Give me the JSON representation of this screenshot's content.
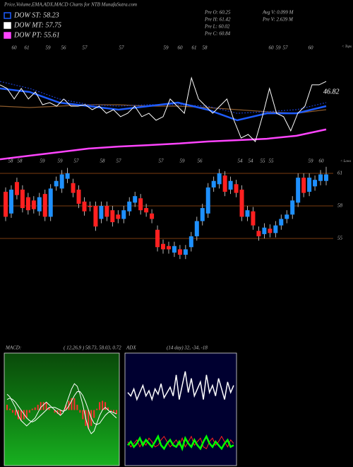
{
  "header": {
    "title": "Price,Volume,EMA,ADX,MACD Charts for NTB MunafaSutra.com",
    "legend": [
      {
        "label": "DOW ST: 58.23",
        "color": "#1e5cff"
      },
      {
        "label": "DOW MT: 57.75",
        "color": "#ffffff"
      },
      {
        "label": "DOW PT: 55.61",
        "color": "#ff44ff"
      }
    ],
    "stats": [
      "Pre O: 60.25",
      "Pre H: 61.42",
      "Pre L: 60.02",
      "Pre C: 60.84",
      "Avg V: 0.099 M",
      "Pre V: 2.639 M"
    ]
  },
  "chart_data": [
    {
      "type": "line",
      "ylim": [
        0,
        100
      ],
      "annotation": "46.82",
      "tops_label": "< Tops",
      "lows_label": "< Lows",
      "top_labels": [
        "60",
        "61",
        "59",
        "56",
        "57",
        "57",
        "59",
        "60",
        "61",
        "58",
        "60",
        "59",
        "57",
        "60"
      ],
      "bottom_labels": [
        "58",
        "58",
        "59",
        "59",
        "57",
        "58",
        "57",
        "57",
        "59",
        "56",
        "54",
        "54",
        "55",
        "55",
        "59",
        "60"
      ],
      "series": [
        {
          "color": "#8b5a2b",
          "width": 1.2,
          "dash": false,
          "values": [
            50,
            48.9,
            50,
            51.1,
            51.1,
            50,
            50,
            48.9,
            47.2,
            45.6,
            44.4,
            47.2
          ]
        },
        {
          "color": "#ff44ff",
          "width": 2.5,
          "dash": false,
          "values": [
            8.3,
            11.1,
            13.9,
            16.7,
            18.3,
            19.4,
            20.6,
            22.2,
            23.3,
            24.4,
            26.7,
            31.7
          ]
        },
        {
          "color": "#1a3cc8",
          "width": 1.2,
          "dash": true,
          "values": [
            69.4,
            63.9,
            55.6,
            51.1,
            50,
            51.1,
            51.1,
            50,
            44.4,
            45.6,
            47.2,
            52.8
          ]
        },
        {
          "color": "#1e5cff",
          "width": 2.5,
          "dash": false,
          "values": [
            63.9,
            61.1,
            52.8,
            50,
            47.2,
            50,
            52.8,
            47.2,
            38.9,
            44.4,
            44.4,
            50
          ]
        },
        {
          "color": "#ffffff",
          "width": 1,
          "dash": false,
          "values": [
            66.7,
            63.9,
            55.6,
            63.9,
            55.6,
            61.1,
            51.1,
            52.8,
            50,
            55.6,
            50,
            50,
            51.1,
            47.2,
            50,
            44.4,
            47.2,
            41.7,
            44.4,
            50,
            41.7,
            44.4,
            38.9,
            41.7,
            55.6,
            50,
            44.4,
            72.2,
            55.6,
            50,
            44.4,
            50,
            55.6,
            38.9,
            25,
            27.8,
            22.2,
            41.7,
            63.9,
            44.4,
            41.7,
            30.6,
            44.4,
            50,
            66.7,
            66.7,
            69.4
          ]
        }
      ]
    },
    {
      "type": "candlestick",
      "ylim": [
        52.85,
        61.65
      ],
      "yticks": [
        55,
        58,
        61
      ],
      "grid_color": "#7a3b10",
      "up_color": "#1e90ff",
      "down_color": "#ff2020",
      "open": [
        59.3,
        57.3,
        60.2,
        59.5,
        58.8,
        58.5,
        57.5,
        59.1,
        57.0,
        59.8,
        59.6,
        60.5,
        60.1,
        59.5,
        58.4,
        58.0,
        58.0,
        56.8,
        58.0,
        57.6,
        57.2,
        56.8,
        57.5,
        58.3,
        58.7,
        57.8,
        57.3,
        55.8,
        54.5,
        54.3,
        53.7,
        54.0,
        53.5,
        54.2,
        55.2,
        56.6,
        57.3,
        59.7,
        60.0,
        60.8,
        59.5,
        60.0,
        59.5,
        57.0,
        57.5,
        55.7,
        55.4,
        55.9,
        55.5,
        56.2,
        56.8,
        57.2,
        58.3,
        60.6,
        59.3,
        59.8,
        60.3,
        60.3
      ],
      "high": [
        59.7,
        59.9,
        60.6,
        59.9,
        59.2,
        58.9,
        59.2,
        59.5,
        60.0,
        60.7,
        61.3,
        61.5,
        60.5,
        59.9,
        58.8,
        58.4,
        58.4,
        58.4,
        58.4,
        58.0,
        57.6,
        58.0,
        58.8,
        59.3,
        59.1,
        58.2,
        57.7,
        56.2,
        54.9,
        54.7,
        54.7,
        54.4,
        54.4,
        55.6,
        57.0,
        58.2,
        60.1,
        60.7,
        61.4,
        61.2,
        60.7,
        60.4,
        59.9,
        58.0,
        57.9,
        56.1,
        56.4,
        56.3,
        56.6,
        57.2,
        57.6,
        58.9,
        61.0,
        61.0,
        61.0,
        60.8,
        61.3,
        61.6
      ],
      "low": [
        56.6,
        56.9,
        58.6,
        57.4,
        57.2,
        57.3,
        57.1,
        56.6,
        56.6,
        59.4,
        59.2,
        60.1,
        58.8,
        57.8,
        57.1,
        57.5,
        55.7,
        56.4,
        56.6,
        56.1,
        56.4,
        56.4,
        57.1,
        57.9,
        57.2,
        57.0,
        56.4,
        53.8,
        53.6,
        53.6,
        53.3,
        53.1,
        53.1,
        53.8,
        54.8,
        56.2,
        56.9,
        59.3,
        59.6,
        58.9,
        59.1,
        58.8,
        56.6,
        56.6,
        55.8,
        54.8,
        55.0,
        55.1,
        55.1,
        55.8,
        56.4,
        56.8,
        57.9,
        58.8,
        58.9,
        59.4,
        59.9,
        59.9
      ],
      "close": [
        57.0,
        59.5,
        59.0,
        57.8,
        57.6,
        57.7,
        58.8,
        57.0,
        59.6,
        60.3,
        60.9,
        61.0,
        59.2,
        58.2,
        57.5,
        57.9,
        56.1,
        58.0,
        57.0,
        56.5,
        56.8,
        57.6,
        58.4,
        58.9,
        57.6,
        57.4,
        56.8,
        54.2,
        54.0,
        54.0,
        54.3,
        53.5,
        54.0,
        55.2,
        56.6,
        57.8,
        59.7,
        60.3,
        61.0,
        59.3,
        60.3,
        59.2,
        57.0,
        57.6,
        56.2,
        55.2,
        56.0,
        55.5,
        56.2,
        56.8,
        57.2,
        58.5,
        60.6,
        59.2,
        60.6,
        60.4,
        60.9,
        60.9
      ]
    },
    {
      "type": "macd",
      "title": "MACD:",
      "subtitle": "( 12,26,9 ) 58.73, 58.03, 0.72",
      "ylim": [
        -2,
        2
      ],
      "histogram": {
        "color": "#ff3030",
        "values": [
          0.2,
          0.05,
          -0.1,
          -0.2,
          -0.35,
          -0.4,
          -0.35,
          -0.3,
          -0.1,
          0.05,
          0.1,
          0.2,
          0.3,
          0.3,
          0.3,
          0.1,
          0,
          -0.1,
          -0.15,
          -0.2,
          -0.05,
          0.2,
          0.35,
          0.45,
          0.45,
          0.2,
          -0.1,
          -0.35,
          -0.6,
          -0.7,
          -0.6,
          -0.3,
          0.05,
          0.3,
          0.35,
          0.3,
          0.1,
          -0.05,
          -0.1,
          -0.15
        ]
      },
      "series": [
        {
          "color": "#ffffff",
          "values": [
            0.6,
            0.5,
            0.3,
            0.1,
            -0.2,
            -0.4,
            -0.5,
            -0.6,
            -0.5,
            -0.4,
            -0.3,
            -0.1,
            0.1,
            0.2,
            0.3,
            0.2,
            0.1,
            0.0,
            -0.1,
            -0.2,
            -0.1,
            0.2,
            0.5,
            0.8,
            1.0,
            0.9,
            0.6,
            0.2,
            -0.3,
            -0.7,
            -0.9,
            -0.8,
            -0.5,
            -0.2,
            0.0,
            0.1,
            0.0,
            -0.1,
            -0.2,
            -0.3
          ]
        },
        {
          "color": "#ffffff",
          "values": [
            0.4,
            0.45,
            0.4,
            0.3,
            0.15,
            0,
            -0.15,
            -0.3,
            -0.4,
            -0.45,
            -0.4,
            -0.3,
            -0.2,
            -0.1,
            0.0,
            0.1,
            0.1,
            0.1,
            0.05,
            0,
            -0.05,
            0,
            0.15,
            0.35,
            0.55,
            0.7,
            0.7,
            0.55,
            0.3,
            0,
            -0.3,
            -0.5,
            -0.55,
            -0.5,
            -0.35,
            -0.2,
            -0.1,
            -0.05,
            -0.1,
            -0.15
          ]
        }
      ]
    },
    {
      "type": "line",
      "title": "ADX",
      "subtitle": "(14 day) 32, -34, -18",
      "ylim": [
        0,
        60
      ],
      "series": [
        {
          "color": "#ffffff",
          "width": 1.5,
          "dash": false,
          "values": [
            40,
            38,
            42,
            36,
            40,
            44,
            38,
            41,
            36,
            42,
            39,
            45,
            37,
            40,
            43,
            38,
            50,
            36,
            44,
            52,
            40,
            48,
            38,
            42,
            46,
            36,
            50,
            40,
            44,
            38,
            48,
            42,
            36,
            46,
            40,
            44
          ]
        },
        {
          "color": "#ff2020",
          "width": 1,
          "dash": false,
          "values": [
            12,
            9,
            11,
            13,
            9,
            12,
            10,
            14,
            12,
            9,
            10,
            13,
            15,
            12,
            9,
            11,
            13,
            10,
            14,
            9,
            12,
            15,
            10,
            12,
            14,
            9,
            8,
            12,
            14,
            10,
            12,
            15,
            12,
            9,
            13,
            11
          ]
        },
        {
          "color": "#00ff00",
          "width": 2.5,
          "dash": false,
          "values": [
            10,
            12,
            9,
            11,
            14,
            10,
            13,
            11,
            9,
            12,
            15,
            10,
            8,
            11,
            13,
            10,
            9,
            12,
            8,
            14,
            11,
            9,
            13,
            10,
            8,
            12,
            15,
            11,
            9,
            12,
            10,
            8,
            11,
            13,
            9,
            10
          ]
        }
      ]
    }
  ]
}
